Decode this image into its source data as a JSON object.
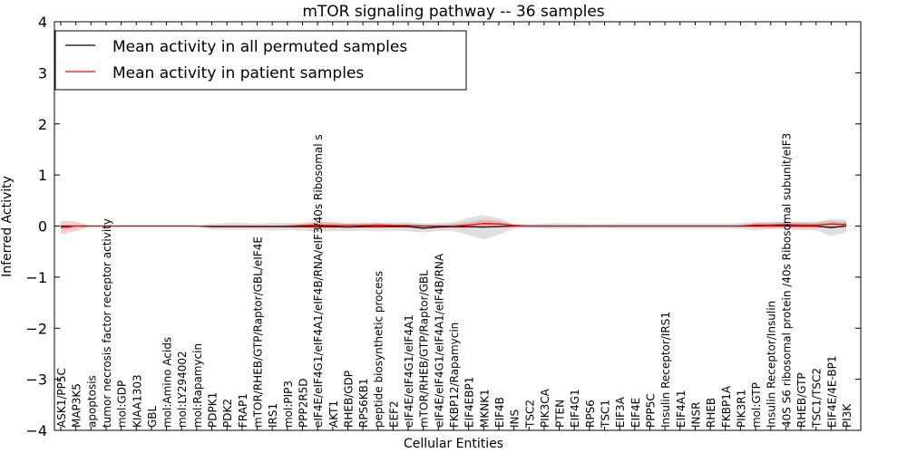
{
  "chart_data": {
    "type": "line",
    "title": "mTOR signaling pathway -- 36 samples",
    "xlabel": "Cellular Entities",
    "ylabel": "Inferred Activity",
    "ylim": [
      -4,
      4
    ],
    "yticks": [
      -4,
      -3,
      -2,
      -1,
      0,
      1,
      2,
      3,
      4
    ],
    "ytick_labels": [
      "−4",
      "−3",
      "−2",
      "−1",
      "0",
      "1",
      "2",
      "3",
      "4"
    ],
    "grid": false,
    "legend_position": "top-left",
    "categories": [
      "ASK1/PP5C",
      "MAP3K5",
      "apoptosis",
      "tumor necrosis factor receptor activity",
      "mol:GDP",
      "KIAA1303",
      "GBL",
      "mol:Amino Acids",
      "mol:LY294002",
      "mol:Rapamycin",
      "PDPK1",
      "PDK2",
      "FRAP1",
      "mTOR/RHEB/GTP/Raptor/GBL/eIF4E",
      "IRS1",
      "mol:PIP3",
      "PPP2R5D",
      "eIF4E/eIF4G1/eIF4A1/eIF4B/RNA/eIF3/40s Ribosomal s",
      "AKT1",
      "RHEB/GDP",
      "RPS6KB1",
      "peptide biosynthetic process",
      "EEF2",
      "eIF4E/eIF4G1/eIF4A1",
      "mTOR/RHEB/GTP/Raptor/GBL",
      "eIF4E/eIF4G1/eIF4A1/eIF4B/RNA",
      "FKBP12/Rapamycin",
      "EIF4EBP1",
      "MKNK1",
      "EIF4B",
      "INS",
      "TSC2",
      "PIK3CA",
      "PTEN",
      "EIF4G1",
      "RPS6",
      "TSC1",
      "EIF3A",
      "EIF4E",
      "PPP5C",
      "Insulin Receptor/IRS1",
      "EIF4A1",
      "INSR",
      "RHEB",
      "FKBP1A",
      "PIK3R1",
      "mol:GTP",
      "Insulin Receptor/Insulin",
      "40S S6 ribosomal protein /40s Ribosomal subunit/eIF3",
      "RHEB/GTP",
      "TSC1/TSC2",
      "EIF4E/4E-BP1",
      "PI3K"
    ],
    "series": [
      {
        "name": "Mean activity in all permuted samples",
        "color": "#000000",
        "values": [
          0.0,
          0.0,
          0.0,
          0.0,
          0.0,
          0.0,
          0.0,
          0.0,
          0.0,
          0.0,
          -0.01,
          -0.01,
          -0.01,
          -0.01,
          -0.01,
          -0.01,
          -0.01,
          -0.01,
          -0.01,
          -0.02,
          -0.01,
          -0.01,
          -0.01,
          -0.01,
          -0.04,
          -0.02,
          -0.01,
          -0.01,
          -0.02,
          -0.01,
          0.0,
          0.0,
          0.0,
          0.0,
          0.0,
          0.0,
          0.0,
          0.0,
          0.0,
          0.0,
          0.0,
          0.0,
          0.0,
          0.0,
          0.0,
          0.0,
          0.0,
          0.01,
          0.0,
          0.0,
          0.0,
          -0.03,
          0.0
        ],
        "band": [
          0.0,
          0.0,
          0.0,
          0.0,
          0.0,
          0.0,
          0.0,
          0.0,
          0.0,
          0.0,
          0.06,
          0.07,
          0.07,
          0.06,
          0.08,
          0.07,
          0.08,
          0.1,
          0.09,
          0.08,
          0.08,
          0.08,
          0.08,
          0.09,
          0.09,
          0.08,
          0.09,
          0.17,
          0.24,
          0.16,
          0.05,
          0.04,
          0.05,
          0.06,
          0.05,
          0.04,
          0.04,
          0.05,
          0.05,
          0.05,
          0.05,
          0.05,
          0.05,
          0.05,
          0.05,
          0.06,
          0.08,
          0.07,
          0.07,
          0.08,
          0.08,
          0.17,
          0.12
        ]
      },
      {
        "name": "Mean activity in patient samples",
        "color": "#ff0000",
        "values": [
          -0.03,
          0.0,
          0.0,
          0.0,
          0.0,
          0.0,
          0.0,
          0.0,
          0.0,
          0.0,
          0.0,
          0.0,
          0.0,
          0.0,
          0.0,
          0.0,
          0.01,
          0.02,
          0.01,
          0.01,
          0.01,
          0.02,
          0.01,
          0.01,
          0.0,
          0.0,
          0.0,
          0.02,
          0.05,
          0.04,
          0.01,
          0.0,
          0.0,
          0.0,
          0.0,
          0.0,
          0.0,
          0.0,
          0.0,
          0.0,
          0.0,
          0.0,
          0.0,
          0.0,
          0.0,
          0.0,
          0.02,
          0.02,
          0.03,
          0.02,
          0.02,
          0.04,
          0.03
        ],
        "band": [
          0.13,
          0.09,
          0.0,
          0.0,
          0.0,
          0.0,
          0.0,
          0.0,
          0.0,
          0.0,
          0.0,
          0.0,
          0.0,
          0.0,
          0.0,
          0.02,
          0.03,
          0.06,
          0.05,
          0.04,
          0.04,
          0.04,
          0.03,
          0.03,
          0.03,
          0.03,
          0.04,
          0.06,
          0.08,
          0.06,
          0.02,
          0.01,
          0.01,
          0.01,
          0.01,
          0.01,
          0.01,
          0.01,
          0.01,
          0.01,
          0.01,
          0.01,
          0.01,
          0.01,
          0.01,
          0.02,
          0.04,
          0.05,
          0.06,
          0.05,
          0.05,
          0.06,
          0.05
        ]
      }
    ]
  }
}
